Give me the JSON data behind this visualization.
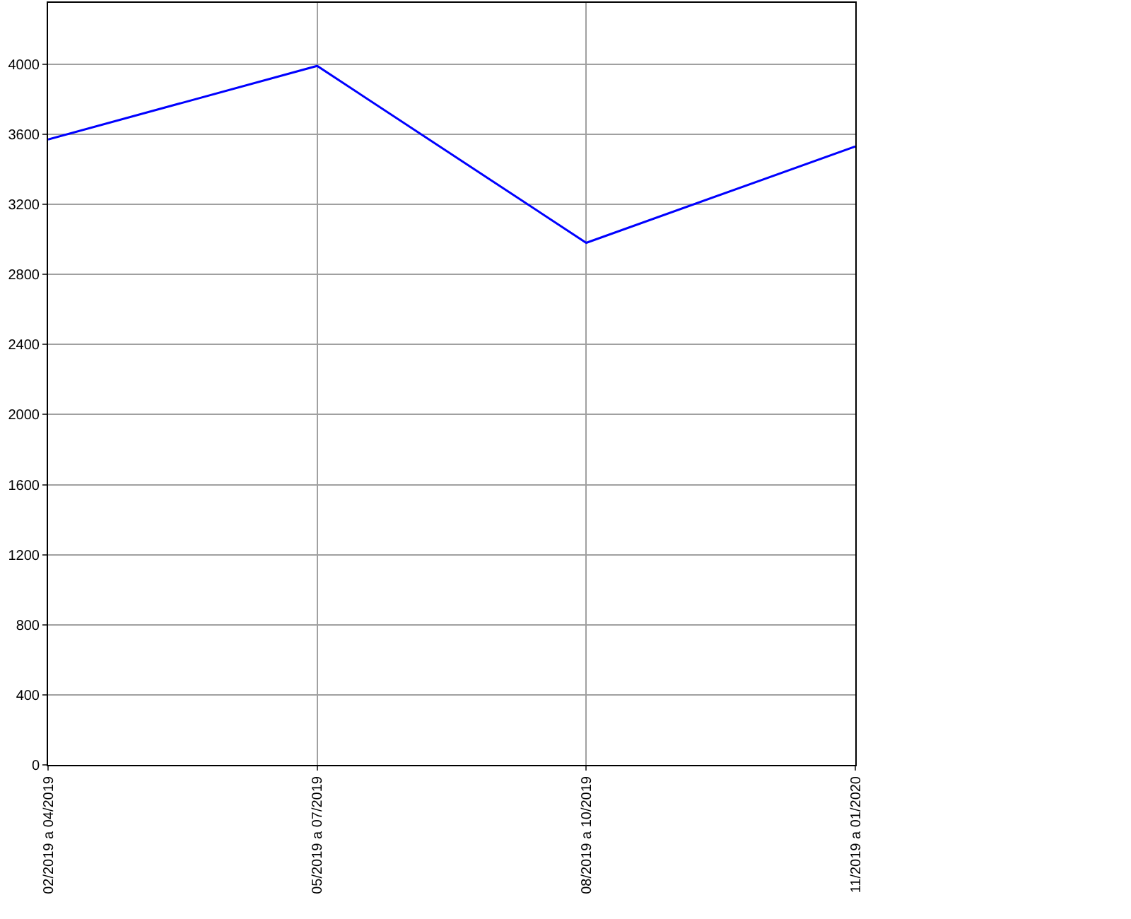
{
  "chart_data": {
    "type": "line",
    "categories": [
      "02/2019 a 04/2019",
      "05/2019 a 07/2019",
      "08/2019 a 10/2019",
      "11/2019 a 01/2020"
    ],
    "series": [
      {
        "color": "#0000ff",
        "values": [
          3570,
          3990,
          2980,
          3530
        ]
      }
    ],
    "ylim": [
      0,
      4350
    ],
    "yticks": [
      0,
      400,
      800,
      1200,
      1600,
      2000,
      2400,
      2800,
      3200,
      3600,
      4000
    ],
    "grid": true,
    "legend": false,
    "marker": "none",
    "line_style": "solid"
  }
}
